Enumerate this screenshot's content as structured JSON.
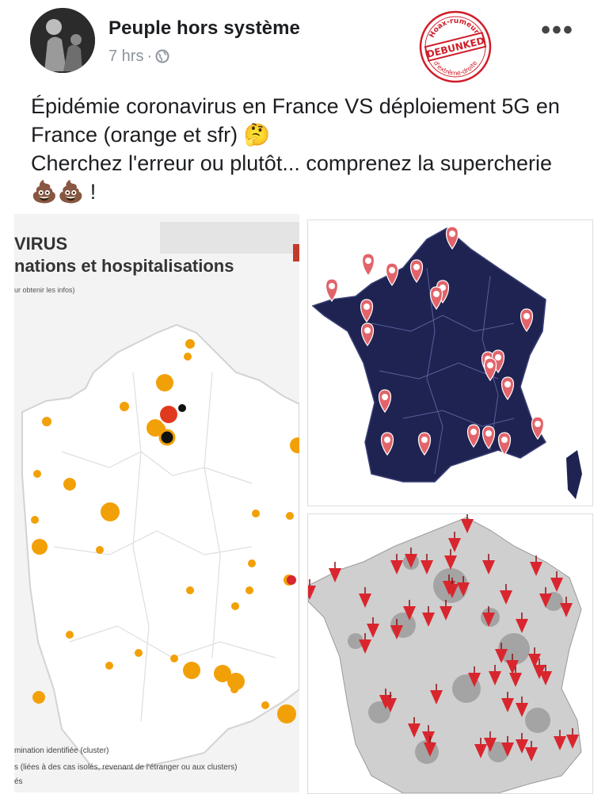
{
  "post": {
    "author": "Peuple hors système",
    "time": "7 hrs",
    "separator": "·",
    "more_label": "•••",
    "text_lines": [
      "Épidémie coronavirus en France VS déploiement 5G en",
      "France (orange et sfr) 🤔",
      "Cherchez l'erreur ou plutôt... comprenez la supercherie",
      "💩💩 !"
    ]
  },
  "stamp": {
    "top_text": "Hoax-rumeurs",
    "center_text": "DEBUNKED",
    "bottom_text": "d'extrême-droite"
  },
  "left_map": {
    "title": "VIRUS",
    "subtitle": "nations et hospitalisations",
    "note": "ur obtenir les infos)",
    "legend": [
      "mination identifiée (cluster)",
      "s (liées à des cas isolés, revenant de l'étranger ou aux clusters)",
      "és"
    ]
  },
  "icons": {
    "globe": "globe-icon",
    "more": "more-options-icon",
    "thinking": "thinking-face-emoji",
    "poop": "pile-of-poo-emoji",
    "pin": "map-pin-icon"
  },
  "colors": {
    "navy_map": "#1f2352",
    "pin_red": "#e2646a",
    "marker_red": "#d9262e",
    "cluster_orange": "#f2a007",
    "stamp_red": "#cf1e2a"
  }
}
